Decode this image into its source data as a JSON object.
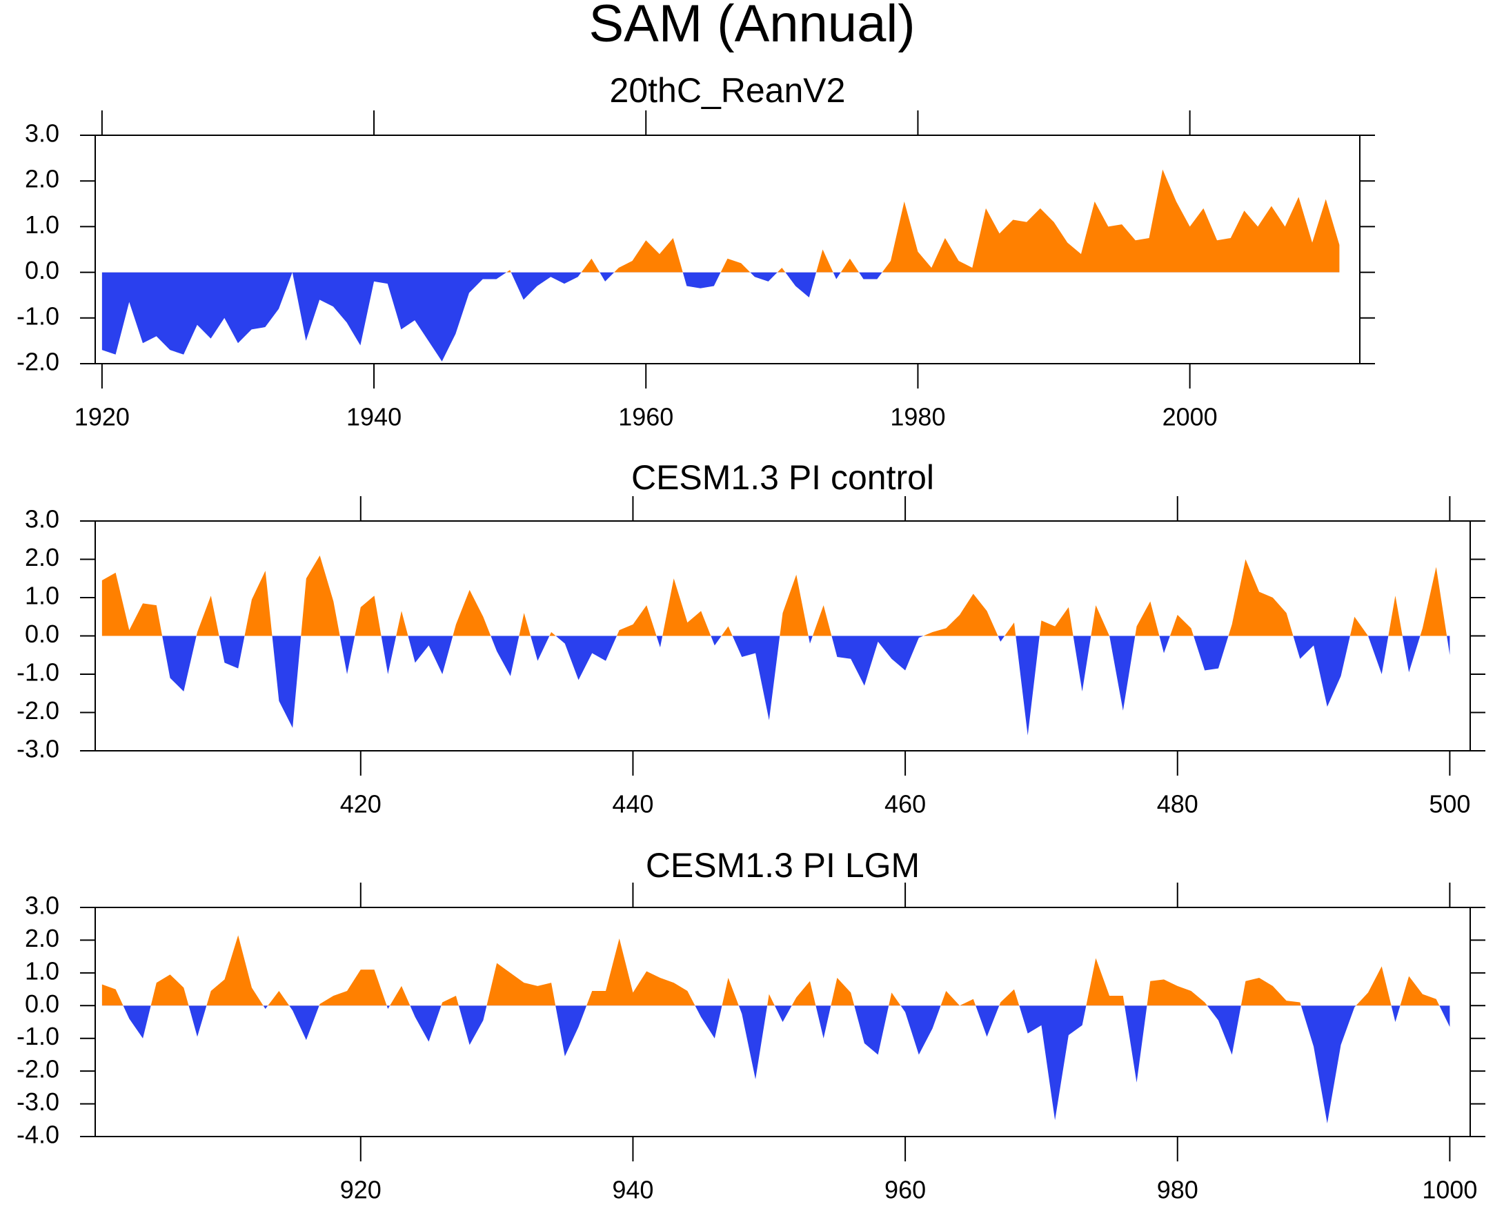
{
  "title": "SAM (Annual)",
  "chart_data": [
    {
      "type": "area",
      "title": "20thC_ReanV2",
      "pos_color": "#ff8000",
      "neg_color": "#2a40ee",
      "xlim": [
        1919.5,
        2012.5
      ],
      "xticks": [
        1920,
        1940,
        1960,
        1980,
        2000
      ],
      "ylim": [
        -2,
        3
      ],
      "yticks": [
        {
          "value": -2,
          "label": "-2.0"
        },
        {
          "value": -1,
          "label": "-1.0"
        },
        {
          "value": 0,
          "label": "0.0"
        },
        {
          "value": 1,
          "label": "1.0"
        },
        {
          "value": 2,
          "label": "2.0"
        },
        {
          "value": 3,
          "label": "3.0"
        }
      ],
      "x": [
        1920,
        1921,
        1922,
        1923,
        1924,
        1925,
        1926,
        1927,
        1928,
        1929,
        1930,
        1931,
        1932,
        1933,
        1934,
        1935,
        1936,
        1937,
        1938,
        1939,
        1940,
        1941,
        1942,
        1943,
        1944,
        1945,
        1946,
        1947,
        1948,
        1949,
        1950,
        1951,
        1952,
        1953,
        1954,
        1955,
        1956,
        1957,
        1958,
        1959,
        1960,
        1961,
        1962,
        1963,
        1964,
        1965,
        1966,
        1967,
        1968,
        1969,
        1970,
        1971,
        1972,
        1973,
        1974,
        1975,
        1976,
        1977,
        1978,
        1979,
        1980,
        1981,
        1982,
        1983,
        1984,
        1985,
        1986,
        1987,
        1988,
        1989,
        1990,
        1991,
        1992,
        1993,
        1994,
        1995,
        1996,
        1997,
        1998,
        1999,
        2000,
        2001,
        2002,
        2003,
        2004,
        2005,
        2006,
        2007,
        2008,
        2009,
        2010,
        2011
      ],
      "values": [
        -1.7,
        -1.8,
        -0.65,
        -1.55,
        -1.4,
        -1.7,
        -1.8,
        -1.15,
        -1.45,
        -1.0,
        -1.55,
        -1.25,
        -1.2,
        -0.8,
        0.0,
        -1.5,
        -0.6,
        -0.75,
        -1.1,
        -1.6,
        -0.2,
        -0.25,
        -1.25,
        -1.05,
        -1.5,
        -1.95,
        -1.35,
        -0.45,
        -0.15,
        -0.15,
        0.05,
        -0.6,
        -0.3,
        -0.1,
        -0.25,
        -0.1,
        0.3,
        -0.2,
        0.1,
        0.25,
        0.7,
        0.4,
        0.75,
        -0.3,
        -0.35,
        -0.3,
        0.3,
        0.2,
        -0.1,
        -0.2,
        0.1,
        -0.3,
        -0.55,
        0.5,
        -0.15,
        0.3,
        -0.15,
        -0.15,
        0.25,
        1.55,
        0.45,
        0.1,
        0.75,
        0.25,
        0.1,
        1.4,
        0.85,
        1.15,
        1.1,
        1.4,
        1.1,
        0.65,
        0.4,
        1.55,
        1.0,
        1.05,
        0.7,
        0.75,
        2.25,
        1.55,
        1.0,
        1.4,
        0.7,
        0.75,
        1.35,
        1.0,
        1.45,
        1.0,
        1.65,
        0.65,
        1.6,
        0.6
      ]
    },
    {
      "type": "area",
      "title": "CESM1.3 PI control",
      "pos_color": "#ff8000",
      "neg_color": "#2a40ee",
      "xlim": [
        400.5,
        501.5
      ],
      "xticks": [
        420,
        440,
        460,
        480,
        500
      ],
      "ylim": [
        -3,
        3
      ],
      "yticks": [
        {
          "value": -3,
          "label": "-3.0"
        },
        {
          "value": -2,
          "label": "-2.0"
        },
        {
          "value": -1,
          "label": "-1.0"
        },
        {
          "value": 0,
          "label": "0.0"
        },
        {
          "value": 1,
          "label": "1.0"
        },
        {
          "value": 2,
          "label": "2.0"
        },
        {
          "value": 3,
          "label": "3.0"
        }
      ],
      "x": [
        401,
        402,
        403,
        404,
        405,
        406,
        407,
        408,
        409,
        410,
        411,
        412,
        413,
        414,
        415,
        416,
        417,
        418,
        419,
        420,
        421,
        422,
        423,
        424,
        425,
        426,
        427,
        428,
        429,
        430,
        431,
        432,
        433,
        434,
        435,
        436,
        437,
        438,
        439,
        440,
        441,
        442,
        443,
        444,
        445,
        446,
        447,
        448,
        449,
        450,
        451,
        452,
        453,
        454,
        455,
        456,
        457,
        458,
        459,
        460,
        461,
        462,
        463,
        464,
        465,
        466,
        467,
        468,
        469,
        470,
        471,
        472,
        473,
        474,
        475,
        476,
        477,
        478,
        479,
        480,
        481,
        482,
        483,
        484,
        485,
        486,
        487,
        488,
        489,
        490,
        491,
        492,
        493,
        494,
        495,
        496,
        497,
        498,
        499,
        500
      ],
      "values": [
        1.45,
        1.65,
        0.15,
        0.85,
        0.8,
        -1.1,
        -1.45,
        0.1,
        1.05,
        -0.7,
        -0.85,
        0.95,
        1.7,
        -1.7,
        -2.4,
        1.5,
        2.1,
        0.9,
        -1.0,
        0.75,
        1.05,
        -1.0,
        0.65,
        -0.7,
        -0.25,
        -1.0,
        0.3,
        1.2,
        0.5,
        -0.4,
        -1.05,
        0.6,
        -0.65,
        0.1,
        -0.2,
        -1.15,
        -0.45,
        -0.65,
        0.15,
        0.3,
        0.8,
        -0.3,
        1.5,
        0.35,
        0.65,
        -0.25,
        0.25,
        -0.55,
        -0.45,
        -2.2,
        0.6,
        1.6,
        -0.2,
        0.8,
        -0.55,
        -0.6,
        -1.3,
        -0.15,
        -0.6,
        -0.9,
        -0.05,
        0.1,
        0.2,
        0.55,
        1.1,
        0.65,
        -0.15,
        0.35,
        -2.6,
        0.4,
        0.25,
        0.75,
        -1.45,
        0.8,
        0.0,
        -1.95,
        0.25,
        0.9,
        -0.45,
        0.55,
        0.2,
        -0.9,
        -0.85,
        0.3,
        2.0,
        1.15,
        1.0,
        0.6,
        -0.6,
        -0.25,
        -1.85,
        -1.05,
        0.5,
        0.0,
        -1.0,
        1.05,
        -0.95,
        0.2,
        1.8,
        -0.5
      ]
    },
    {
      "type": "area",
      "title": "CESM1.3 PI LGM",
      "pos_color": "#ff8000",
      "neg_color": "#2a40ee",
      "xlim": [
        900.5,
        1001.5
      ],
      "xticks": [
        920,
        940,
        960,
        980,
        1000
      ],
      "ylim": [
        -4,
        3
      ],
      "yticks": [
        {
          "value": -4,
          "label": "-4.0"
        },
        {
          "value": -3,
          "label": "-3.0"
        },
        {
          "value": -2,
          "label": "-2.0"
        },
        {
          "value": -1,
          "label": "-1.0"
        },
        {
          "value": 0,
          "label": "0.0"
        },
        {
          "value": 1,
          "label": "1.0"
        },
        {
          "value": 2,
          "label": "2.0"
        },
        {
          "value": 3,
          "label": "3.0"
        }
      ],
      "x": [
        901,
        902,
        903,
        904,
        905,
        906,
        907,
        908,
        909,
        910,
        911,
        912,
        913,
        914,
        915,
        916,
        917,
        918,
        919,
        920,
        921,
        922,
        923,
        924,
        925,
        926,
        927,
        928,
        929,
        930,
        931,
        932,
        933,
        934,
        935,
        936,
        937,
        938,
        939,
        940,
        941,
        942,
        943,
        944,
        945,
        946,
        947,
        948,
        949,
        950,
        951,
        952,
        953,
        954,
        955,
        956,
        957,
        958,
        959,
        960,
        961,
        962,
        963,
        964,
        965,
        966,
        967,
        968,
        969,
        970,
        971,
        972,
        973,
        974,
        975,
        976,
        977,
        978,
        979,
        980,
        981,
        982,
        983,
        984,
        985,
        986,
        987,
        988,
        989,
        990,
        991,
        992,
        993,
        994,
        995,
        996,
        997,
        998,
        999,
        1000
      ],
      "values": [
        0.65,
        0.5,
        -0.4,
        -1.0,
        0.7,
        0.95,
        0.55,
        -0.95,
        0.45,
        0.8,
        2.15,
        0.55,
        -0.1,
        0.45,
        -0.15,
        -1.05,
        0.05,
        0.3,
        0.45,
        1.1,
        1.1,
        -0.1,
        0.6,
        -0.35,
        -1.1,
        0.1,
        0.3,
        -1.2,
        -0.45,
        1.3,
        1.0,
        0.7,
        0.6,
        0.7,
        -1.55,
        -0.65,
        0.45,
        0.45,
        2.05,
        0.4,
        1.05,
        0.85,
        0.7,
        0.45,
        -0.35,
        -1.0,
        0.85,
        -0.25,
        -2.25,
        0.35,
        -0.5,
        0.25,
        0.75,
        -1.0,
        0.85,
        0.4,
        -1.15,
        -1.5,
        0.4,
        -0.2,
        -1.5,
        -0.7,
        0.45,
        0.0,
        0.2,
        -0.95,
        0.1,
        0.5,
        -0.85,
        -0.6,
        -3.5,
        -0.9,
        -0.6,
        1.45,
        0.3,
        0.3,
        -2.35,
        0.75,
        0.8,
        0.6,
        0.45,
        0.1,
        -0.45,
        -1.5,
        0.75,
        0.85,
        0.6,
        0.15,
        0.1,
        -1.25,
        -3.6,
        -1.2,
        -0.05,
        0.4,
        1.2,
        -0.5,
        0.9,
        0.35,
        0.2,
        -0.65
      ]
    }
  ]
}
